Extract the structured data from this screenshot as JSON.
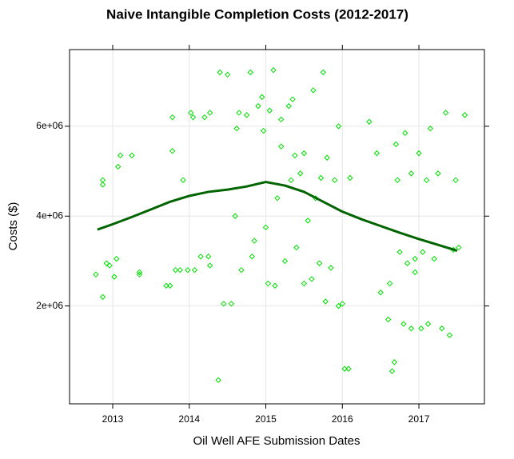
{
  "chart_data": {
    "type": "scatter",
    "title": "Naive Intangible Completion Costs (2012-2017)",
    "x_label": "Oil Well AFE Submission Dates",
    "y_label": "Costs ($)",
    "xlim": [
      2012.436,
      2017.856
    ],
    "ylim": [
      -178000,
      7707000
    ],
    "xticks": [
      2013,
      2014,
      2015,
      2016,
      2017
    ],
    "yticks": [
      {
        "value": 2000000,
        "label": "2e+06"
      },
      {
        "value": 4000000,
        "label": "4e+06"
      },
      {
        "value": 6000000,
        "label": "6e+06"
      }
    ],
    "grid": true,
    "color": "#00e000",
    "x": [
      2012.78,
      2012.87,
      2012.87,
      2012.87,
      2012.92,
      2012.96,
      2013.02,
      2013.05,
      2013.07,
      2013.1,
      2013.25,
      2013.35,
      2013.35,
      2013.7,
      2013.75,
      2013.78,
      2013.78,
      2013.82,
      2013.88,
      2013.92,
      2013.98,
      2014.02,
      2014.05,
      2014.07,
      2014.15,
      2014.25,
      2014.27,
      2014.27,
      2014.2,
      2014.38,
      2014.4,
      2014.45,
      2014.5,
      2014.55,
      2014.6,
      2014.62,
      2014.65,
      2014.68,
      2014.75,
      2014.8,
      2014.82,
      2014.85,
      2014.9,
      2014.95,
      2014.97,
      2015.0,
      2015.03,
      2015.05,
      2015.1,
      2015.12,
      2015.15,
      2015.2,
      2015.2,
      2015.25,
      2015.3,
      2015.33,
      2015.35,
      2015.38,
      2015.4,
      2015.45,
      2015.5,
      2015.5,
      2015.55,
      2015.6,
      2015.62,
      2015.65,
      2015.7,
      2015.72,
      2015.75,
      2015.78,
      2015.8,
      2015.85,
      2015.9,
      2015.95,
      2015.95,
      2016.0,
      2016.03,
      2016.08,
      2016.1,
      2016.35,
      2016.45,
      2016.5,
      2016.6,
      2016.62,
      2016.65,
      2016.68,
      2016.7,
      2016.72,
      2016.75,
      2016.8,
      2016.82,
      2016.85,
      2016.9,
      2016.9,
      2016.95,
      2016.95,
      2017.0,
      2017.03,
      2017.05,
      2017.1,
      2017.12,
      2017.15,
      2017.2,
      2017.25,
      2017.3,
      2017.35,
      2017.4,
      2017.45,
      2017.48,
      2017.52,
      2017.6
    ],
    "values": [
      2700000,
      4700000,
      4800000,
      2200000,
      2950000,
      2900000,
      2650000,
      3050000,
      5100000,
      5350000,
      5350000,
      2750000,
      2700000,
      2450000,
      2450000,
      5450000,
      6200000,
      2800000,
      2800000,
      4800000,
      2800000,
      6300000,
      6200000,
      2800000,
      3100000,
      3100000,
      2900000,
      6300000,
      6200000,
      350000,
      7200000,
      2050000,
      7150000,
      2050000,
      4000000,
      5950000,
      6300000,
      2800000,
      6250000,
      7200000,
      3100000,
      3450000,
      6450000,
      6650000,
      5900000,
      3750000,
      2500000,
      6350000,
      7250000,
      2450000,
      4400000,
      6150000,
      5550000,
      3000000,
      6450000,
      4800000,
      6600000,
      5350000,
      3300000,
      4950000,
      2500000,
      5400000,
      3900000,
      2600000,
      6800000,
      4400000,
      2950000,
      4850000,
      7200000,
      2100000,
      5300000,
      2850000,
      4800000,
      2000000,
      6000000,
      2050000,
      600000,
      600000,
      4850000,
      6100000,
      5400000,
      2300000,
      1700000,
      2500000,
      550000,
      750000,
      5600000,
      4800000,
      3200000,
      1600000,
      5850000,
      2950000,
      1500000,
      4950000,
      2750000,
      3050000,
      5400000,
      1500000,
      3200000,
      4800000,
      1600000,
      5950000,
      3050000,
      4950000,
      1500000,
      6300000,
      1350000,
      3250000,
      4800000,
      3300000,
      6250000
    ],
    "smooth": {
      "color": "#006400",
      "x": [
        2012.8,
        2013.0,
        2013.25,
        2013.5,
        2013.75,
        2014.0,
        2014.25,
        2014.5,
        2014.75,
        2015.0,
        2015.25,
        2015.5,
        2015.75,
        2016.0,
        2016.25,
        2016.5,
        2016.75,
        2017.0,
        2017.25,
        2017.5
      ],
      "values": [
        3700000,
        3820000,
        3980000,
        4150000,
        4320000,
        4450000,
        4540000,
        4590000,
        4660000,
        4760000,
        4680000,
        4540000,
        4320000,
        4100000,
        3930000,
        3780000,
        3630000,
        3490000,
        3360000,
        3230000
      ]
    }
  }
}
